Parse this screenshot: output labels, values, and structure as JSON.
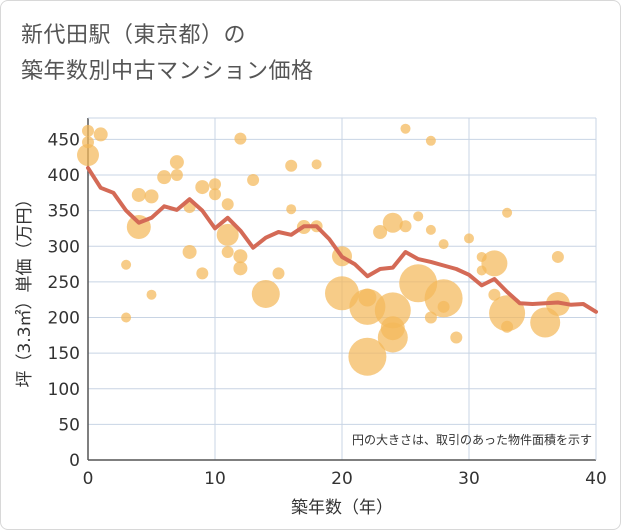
{
  "title_lines": [
    "新代田駅（東京都）の",
    "築年数別中古マンション価格"
  ],
  "chart_data": {
    "type": "scatter",
    "title": "新代田駅（東京都）の築年数別中古マンション価格",
    "xlabel": "築年数（年）",
    "ylabel": "坪（3.3㎡）単価（万円）",
    "xlim": [
      0,
      40
    ],
    "ylim": [
      0,
      480
    ],
    "xticks": [
      0,
      10,
      20,
      30,
      40
    ],
    "yticks": [
      0,
      50,
      100,
      150,
      200,
      250,
      300,
      350,
      400,
      450
    ],
    "grid": true,
    "note": "円の大きさは、取引のあった物件面積を示す",
    "colors": {
      "bubble": "#f4b85a",
      "line": "#d46a56",
      "grid": "#c8d4e4"
    },
    "bubbles": [
      {
        "x": 0,
        "y": 428,
        "r": 11
      },
      {
        "x": 0,
        "y": 462,
        "r": 6
      },
      {
        "x": 0,
        "y": 446,
        "r": 6
      },
      {
        "x": 1,
        "y": 457,
        "r": 7
      },
      {
        "x": 3,
        "y": 274,
        "r": 5
      },
      {
        "x": 3,
        "y": 200,
        "r": 5
      },
      {
        "x": 4,
        "y": 372,
        "r": 7
      },
      {
        "x": 4,
        "y": 327,
        "r": 12
      },
      {
        "x": 5,
        "y": 370,
        "r": 7
      },
      {
        "x": 5,
        "y": 232,
        "r": 5
      },
      {
        "x": 6,
        "y": 397,
        "r": 7
      },
      {
        "x": 7,
        "y": 418,
        "r": 7
      },
      {
        "x": 7,
        "y": 400,
        "r": 6
      },
      {
        "x": 8,
        "y": 355,
        "r": 6
      },
      {
        "x": 8,
        "y": 292,
        "r": 7
      },
      {
        "x": 9,
        "y": 383,
        "r": 7
      },
      {
        "x": 9,
        "y": 262,
        "r": 6
      },
      {
        "x": 10,
        "y": 387,
        "r": 6
      },
      {
        "x": 10,
        "y": 373,
        "r": 6
      },
      {
        "x": 11,
        "y": 359,
        "r": 6
      },
      {
        "x": 11,
        "y": 316,
        "r": 11
      },
      {
        "x": 11,
        "y": 292,
        "r": 6
      },
      {
        "x": 12,
        "y": 451,
        "r": 6
      },
      {
        "x": 12,
        "y": 286,
        "r": 7
      },
      {
        "x": 12,
        "y": 269,
        "r": 7
      },
      {
        "x": 13,
        "y": 393,
        "r": 6
      },
      {
        "x": 14,
        "y": 233,
        "r": 14
      },
      {
        "x": 15,
        "y": 262,
        "r": 6
      },
      {
        "x": 16,
        "y": 413,
        "r": 6
      },
      {
        "x": 16,
        "y": 352,
        "r": 5
      },
      {
        "x": 17,
        "y": 327,
        "r": 7
      },
      {
        "x": 18,
        "y": 415,
        "r": 5
      },
      {
        "x": 18,
        "y": 328,
        "r": 6
      },
      {
        "x": 20,
        "y": 286,
        "r": 10
      },
      {
        "x": 20,
        "y": 234,
        "r": 17
      },
      {
        "x": 22,
        "y": 228,
        "r": 9
      },
      {
        "x": 22,
        "y": 215,
        "r": 18
      },
      {
        "x": 22,
        "y": 145,
        "r": 19
      },
      {
        "x": 23,
        "y": 320,
        "r": 7
      },
      {
        "x": 24,
        "y": 333,
        "r": 10
      },
      {
        "x": 24,
        "y": 210,
        "r": 18
      },
      {
        "x": 24,
        "y": 185,
        "r": 12
      },
      {
        "x": 24,
        "y": 172,
        "r": 15
      },
      {
        "x": 25,
        "y": 465,
        "r": 5
      },
      {
        "x": 25,
        "y": 328,
        "r": 6
      },
      {
        "x": 26,
        "y": 342,
        "r": 5
      },
      {
        "x": 26,
        "y": 248,
        "r": 19
      },
      {
        "x": 27,
        "y": 448,
        "r": 5
      },
      {
        "x": 27,
        "y": 323,
        "r": 5
      },
      {
        "x": 27,
        "y": 200,
        "r": 6
      },
      {
        "x": 28,
        "y": 303,
        "r": 5
      },
      {
        "x": 28,
        "y": 227,
        "r": 19
      },
      {
        "x": 28,
        "y": 215,
        "r": 6
      },
      {
        "x": 29,
        "y": 172,
        "r": 6
      },
      {
        "x": 30,
        "y": 311,
        "r": 5
      },
      {
        "x": 31,
        "y": 285,
        "r": 5
      },
      {
        "x": 31,
        "y": 266,
        "r": 5
      },
      {
        "x": 32,
        "y": 276,
        "r": 13
      },
      {
        "x": 32,
        "y": 232,
        "r": 6
      },
      {
        "x": 33,
        "y": 347,
        "r": 5
      },
      {
        "x": 33,
        "y": 206,
        "r": 18
      },
      {
        "x": 33,
        "y": 187,
        "r": 6
      },
      {
        "x": 36,
        "y": 193,
        "r": 15
      },
      {
        "x": 37,
        "y": 285,
        "r": 6
      },
      {
        "x": 37,
        "y": 219,
        "r": 12
      }
    ],
    "trend": {
      "x": [
        0,
        1,
        2,
        3,
        4,
        5,
        6,
        7,
        8,
        9,
        10,
        11,
        12,
        13,
        14,
        15,
        16,
        17,
        18,
        19,
        20,
        21,
        22,
        23,
        24,
        25,
        26,
        27,
        28,
        29,
        30,
        31,
        32,
        33,
        34,
        35,
        36,
        37,
        38,
        39,
        40
      ],
      "y": [
        410,
        382,
        375,
        350,
        333,
        340,
        356,
        351,
        366,
        350,
        325,
        340,
        322,
        298,
        312,
        320,
        316,
        328,
        328,
        310,
        285,
        275,
        258,
        268,
        270,
        292,
        282,
        278,
        273,
        268,
        260,
        245,
        254,
        236,
        220,
        219,
        220,
        221,
        218,
        219,
        208
      ]
    }
  }
}
